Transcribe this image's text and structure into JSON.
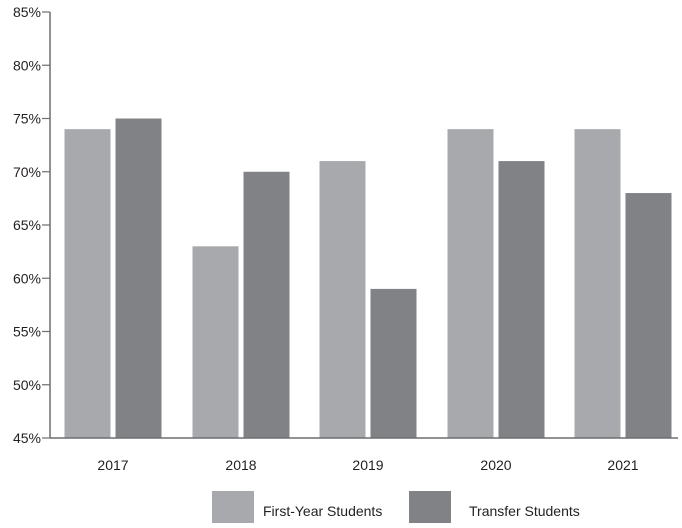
{
  "chart_data": {
    "type": "bar",
    "title": "",
    "xlabel": "",
    "ylabel": "",
    "categories": [
      "2017",
      "2018",
      "2019",
      "2020",
      "2021"
    ],
    "series": [
      {
        "name": "First-Year Students",
        "values": [
          74,
          63,
          71,
          74,
          74
        ],
        "color": "#a7a9ac"
      },
      {
        "name": "Transfer Students",
        "values": [
          75,
          70,
          59,
          71,
          68
        ],
        "color": "#808285"
      }
    ],
    "ylim": [
      45,
      85
    ],
    "yticks": [
      45,
      50,
      55,
      60,
      65,
      70,
      75,
      80,
      85
    ],
    "ytick_labels": [
      "45%",
      "50%",
      "55%",
      "60%",
      "65%",
      "70%",
      "75%",
      "80%",
      "85%"
    ],
    "grid": false,
    "legend_position": "bottom-center",
    "axis_color": "#6d6e71",
    "text_color": "#231f20"
  }
}
